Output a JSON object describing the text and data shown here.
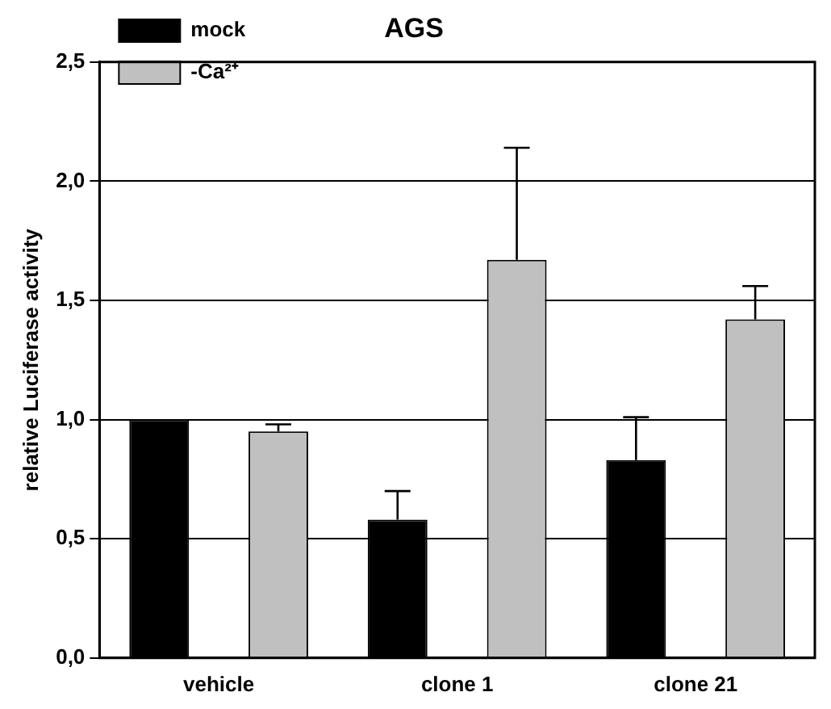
{
  "chart_data": {
    "type": "bar",
    "title": "AGS",
    "ylabel": "relative Luciferase activity",
    "categories": [
      "vehicle",
      "clone 1",
      "clone 21"
    ],
    "series": [
      {
        "name": "mock",
        "color": "#000000",
        "values": [
          1.0,
          0.58,
          0.83
        ],
        "errors": [
          null,
          [
            0.58,
            0.7
          ],
          [
            0.83,
            1.01
          ]
        ]
      },
      {
        "name": "-Ca²⁺",
        "color": "#c0c0c0",
        "values": [
          0.95,
          1.67,
          1.42
        ],
        "errors": [
          [
            0.95,
            0.98
          ],
          [
            1.67,
            2.14
          ],
          [
            1.42,
            1.56
          ]
        ]
      }
    ],
    "ylim": [
      0,
      2.5
    ],
    "yticks": [
      {
        "value": 0,
        "label": "0,0"
      },
      {
        "value": 0.5,
        "label": "0,5"
      },
      {
        "value": 1,
        "label": "1,0"
      },
      {
        "value": 1.5,
        "label": "1,5"
      },
      {
        "value": 2,
        "label": "2,0"
      },
      {
        "value": 2.5,
        "label": "2,5"
      }
    ],
    "grid": "y",
    "legend": "top left"
  }
}
